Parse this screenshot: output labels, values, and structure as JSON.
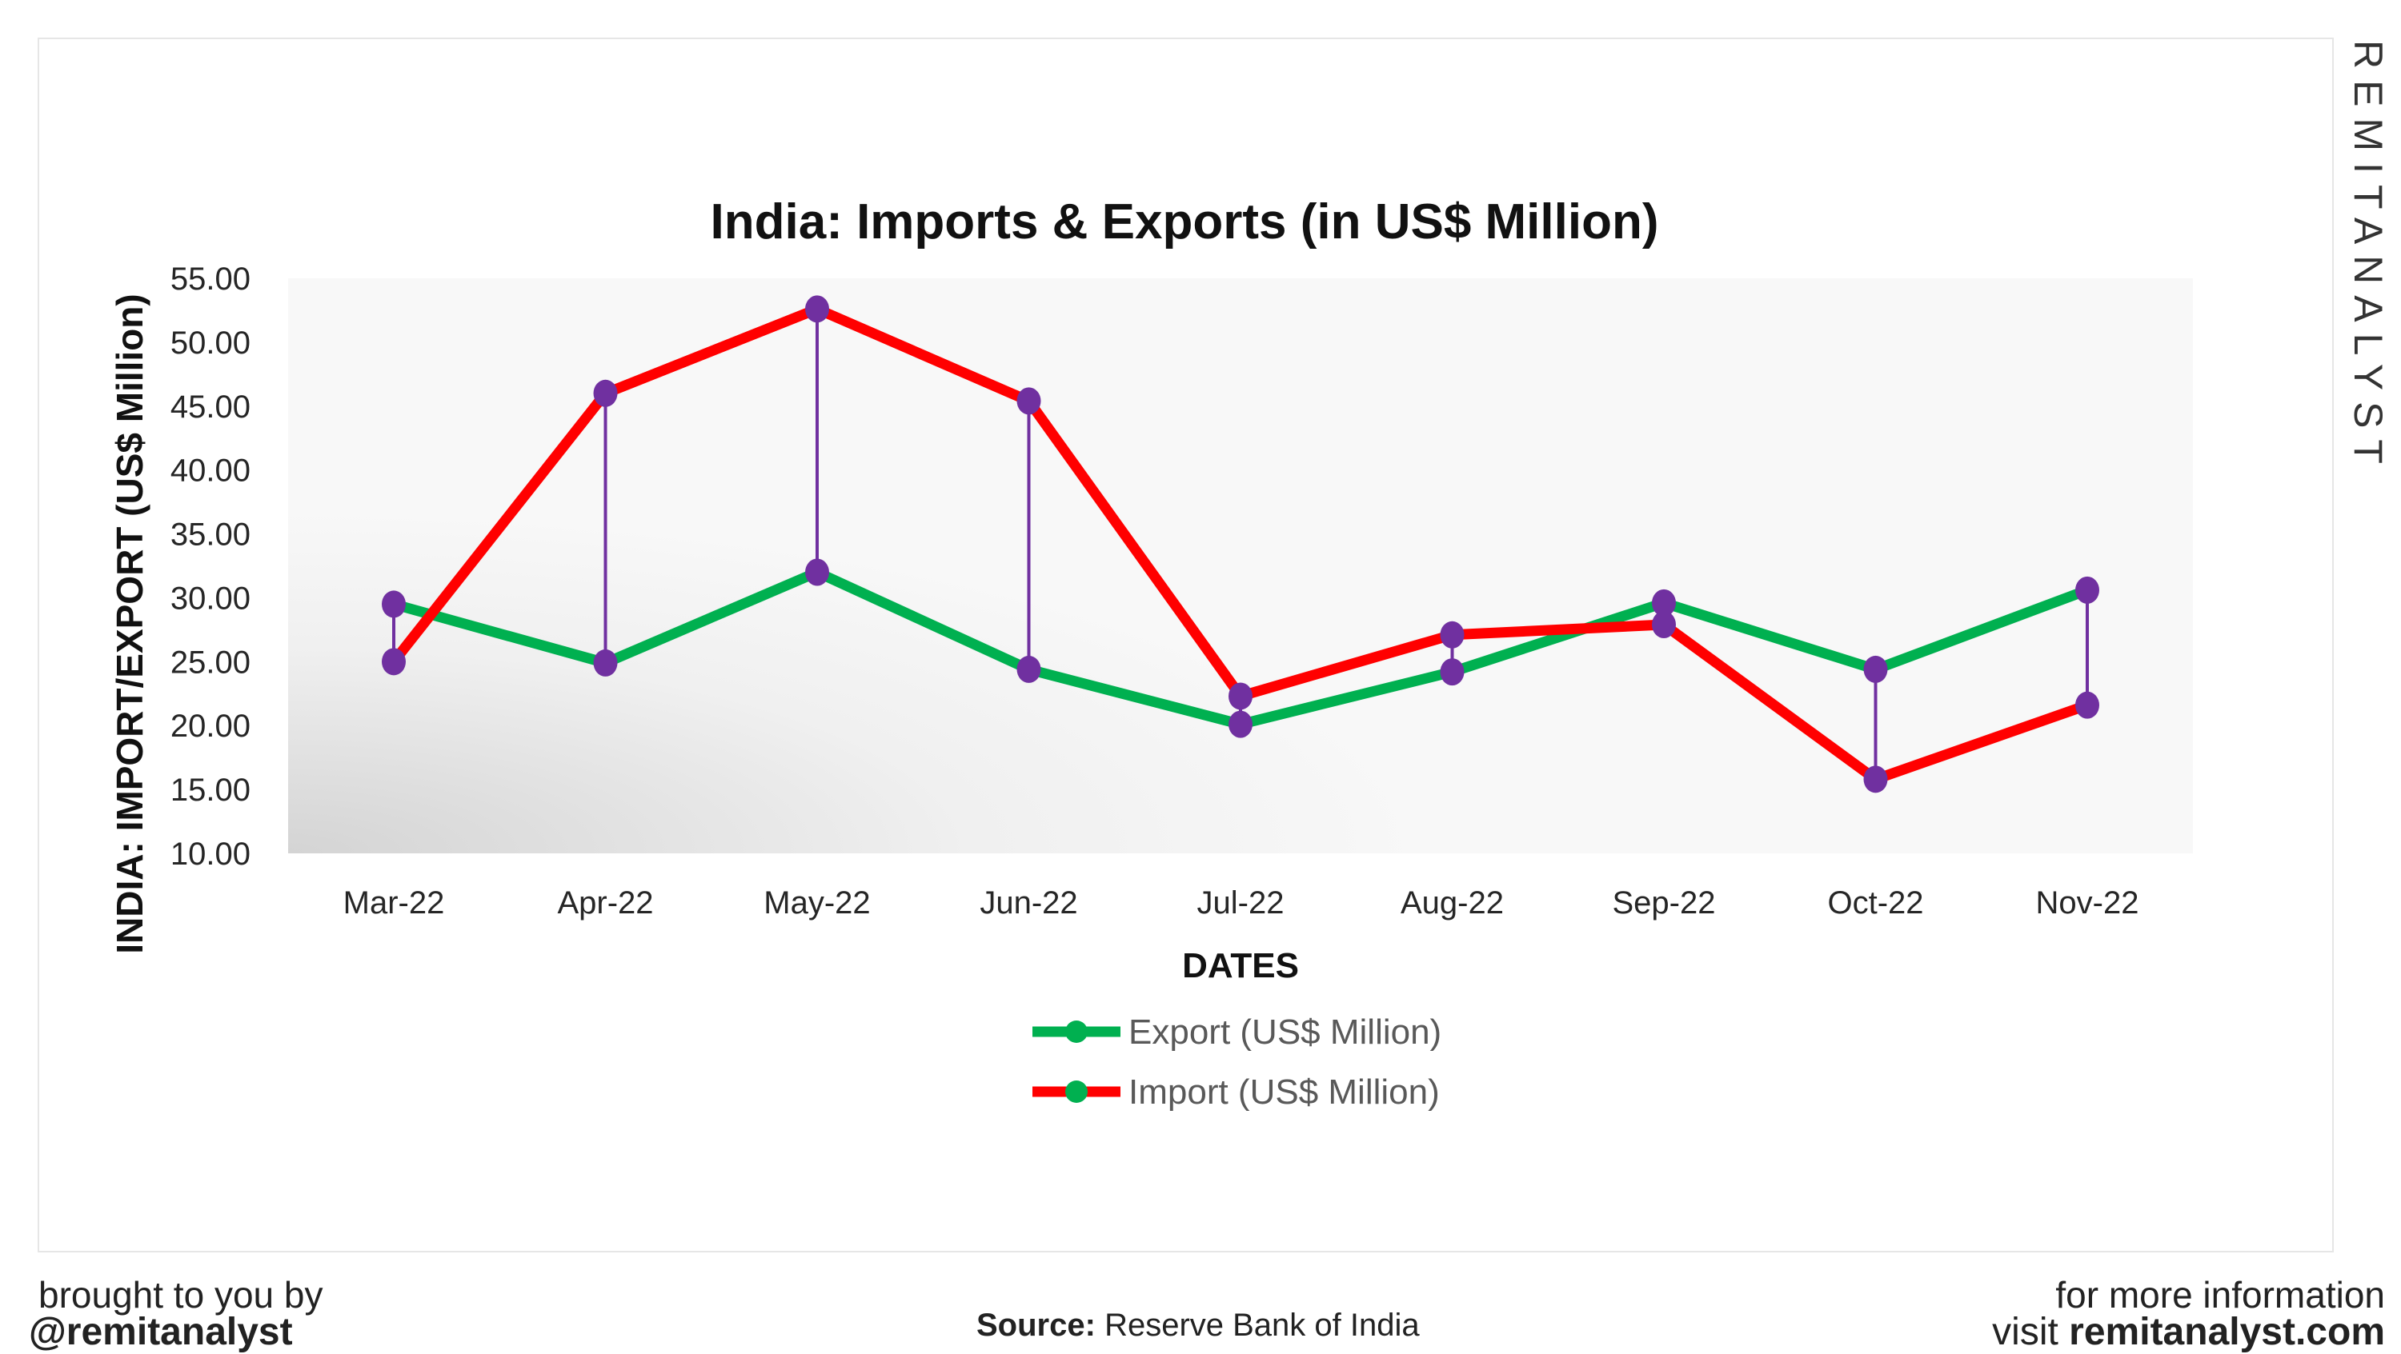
{
  "brand": {
    "watermark": "REMITANALYST"
  },
  "footer": {
    "left_line1": "brought to you by",
    "left_line2": "@remitanalyst",
    "source_label": "Source:",
    "source_value": "Reserve Bank of India",
    "right_line1": "for more information",
    "right_line2_prefix": "visit",
    "right_line2_link": "remitanalyst.com"
  },
  "chart_data": {
    "type": "line",
    "title": "India: Imports & Exports (in US$ Million)",
    "xlabel": "DATES",
    "ylabel": "INDIA: IMPORT/EXPORT (US$ Million)",
    "ylim": [
      10,
      55
    ],
    "yticks": [
      "10.00",
      "15.00",
      "20.00",
      "25.00",
      "30.00",
      "35.00",
      "40.00",
      "45.00",
      "50.00",
      "55.00"
    ],
    "categories": [
      "Mar-22",
      "Apr-22",
      "May-22",
      "Jun-22",
      "Jul-22",
      "Aug-22",
      "Sep-22",
      "Oct-22",
      "Nov-22"
    ],
    "series": [
      {
        "name": "Export (US$ Million)",
        "color": "#00b050",
        "values": [
          29.5,
          24.9,
          32.0,
          24.4,
          20.1,
          24.2,
          29.6,
          24.4,
          30.6
        ]
      },
      {
        "name": "Import (US$ Million)",
        "color": "#ff0000",
        "values": [
          25.0,
          46.0,
          52.6,
          45.4,
          22.3,
          27.1,
          27.9,
          15.8,
          21.6
        ]
      }
    ],
    "marker_color": "#7030a0",
    "high_low_lines": true,
    "grid": false,
    "legend": "bottom"
  }
}
